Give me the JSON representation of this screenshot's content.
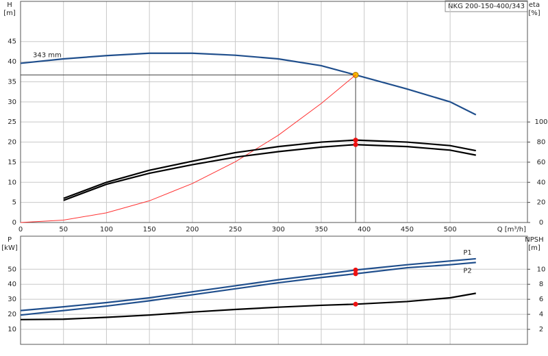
{
  "chart_data": [
    {
      "type": "line",
      "title": "NKG 200-150-400/343",
      "ylabel": "H",
      "yunit": "[m]",
      "y2label": "eta",
      "y2unit": "[%]",
      "xlabel": "Q [m³/h]",
      "x": [
        0,
        50,
        100,
        150,
        200,
        250,
        300,
        350,
        390,
        450,
        500,
        530
      ],
      "xlim": [
        0,
        590
      ],
      "xticks": [
        0,
        50,
        100,
        150,
        200,
        250,
        300,
        350,
        400,
        450,
        500
      ],
      "ylim": [
        0,
        55
      ],
      "yticks": [
        0,
        5,
        10,
        15,
        20,
        25,
        30,
        35,
        40,
        45
      ],
      "y2lim": [
        0,
        220
      ],
      "y2ticks": [
        0,
        20,
        40,
        60,
        80,
        100
      ],
      "grid": true,
      "operating_point": {
        "x": 390,
        "y": 36.7,
        "color": "#f5b800"
      },
      "series": [
        {
          "name": "343 mm",
          "color": "#1f4e8c",
          "values": [
            39.6,
            40.7,
            41.5,
            42.1,
            42.1,
            41.6,
            40.7,
            39.0,
            36.7,
            33.2,
            30.0,
            26.8
          ]
        },
        {
          "color": "#ff3030",
          "values": [
            0,
            0.6,
            2.4,
            5.4,
            9.7,
            15.1,
            21.7,
            29.6,
            36.7,
            null,
            null,
            null
          ]
        },
        {
          "color": "#000000",
          "axis": "y2",
          "values": [
            null,
            24,
            40,
            52,
            61,
            69.5,
            75.5,
            80,
            82,
            80,
            76.5,
            71.5
          ]
        },
        {
          "color": "#000000",
          "axis": "y2",
          "values": [
            null,
            22,
            38,
            49,
            57.5,
            65,
            70.5,
            75,
            77.5,
            75.5,
            72,
            67
          ]
        }
      ]
    },
    {
      "type": "line",
      "ylabel": "P",
      "yunit": "[kW]",
      "y2label": "NPSH",
      "y2unit": "[m]",
      "x": [
        0,
        50,
        100,
        150,
        200,
        250,
        300,
        350,
        390,
        450,
        500,
        530
      ],
      "xlim": [
        0,
        590
      ],
      "xticks": [
        0,
        50,
        100,
        150,
        200,
        250,
        300,
        350,
        400,
        450,
        500
      ],
      "ylim": [
        0,
        72
      ],
      "yticks": [
        10,
        20,
        30,
        40,
        50
      ],
      "y2lim": [
        0,
        14.4
      ],
      "y2ticks": [
        2,
        4,
        6,
        8,
        10
      ],
      "grid": true,
      "series": [
        {
          "name": "P1",
          "color": "#1f4e8c",
          "values": [
            22.5,
            25,
            27.8,
            31,
            35,
            39,
            43,
            46.5,
            49.5,
            53,
            55.5,
            57
          ]
        },
        {
          "name": "P2",
          "color": "#1f4e8c",
          "values": [
            19.5,
            22.5,
            25.5,
            29,
            33,
            37,
            41,
            44.5,
            47,
            51,
            53,
            54.5
          ]
        },
        {
          "color": "#000000",
          "axis": "y2",
          "values": [
            3.3,
            3.35,
            3.6,
            3.9,
            4.3,
            4.65,
            4.95,
            5.2,
            5.35,
            5.7,
            6.2,
            6.8
          ]
        }
      ]
    }
  ]
}
